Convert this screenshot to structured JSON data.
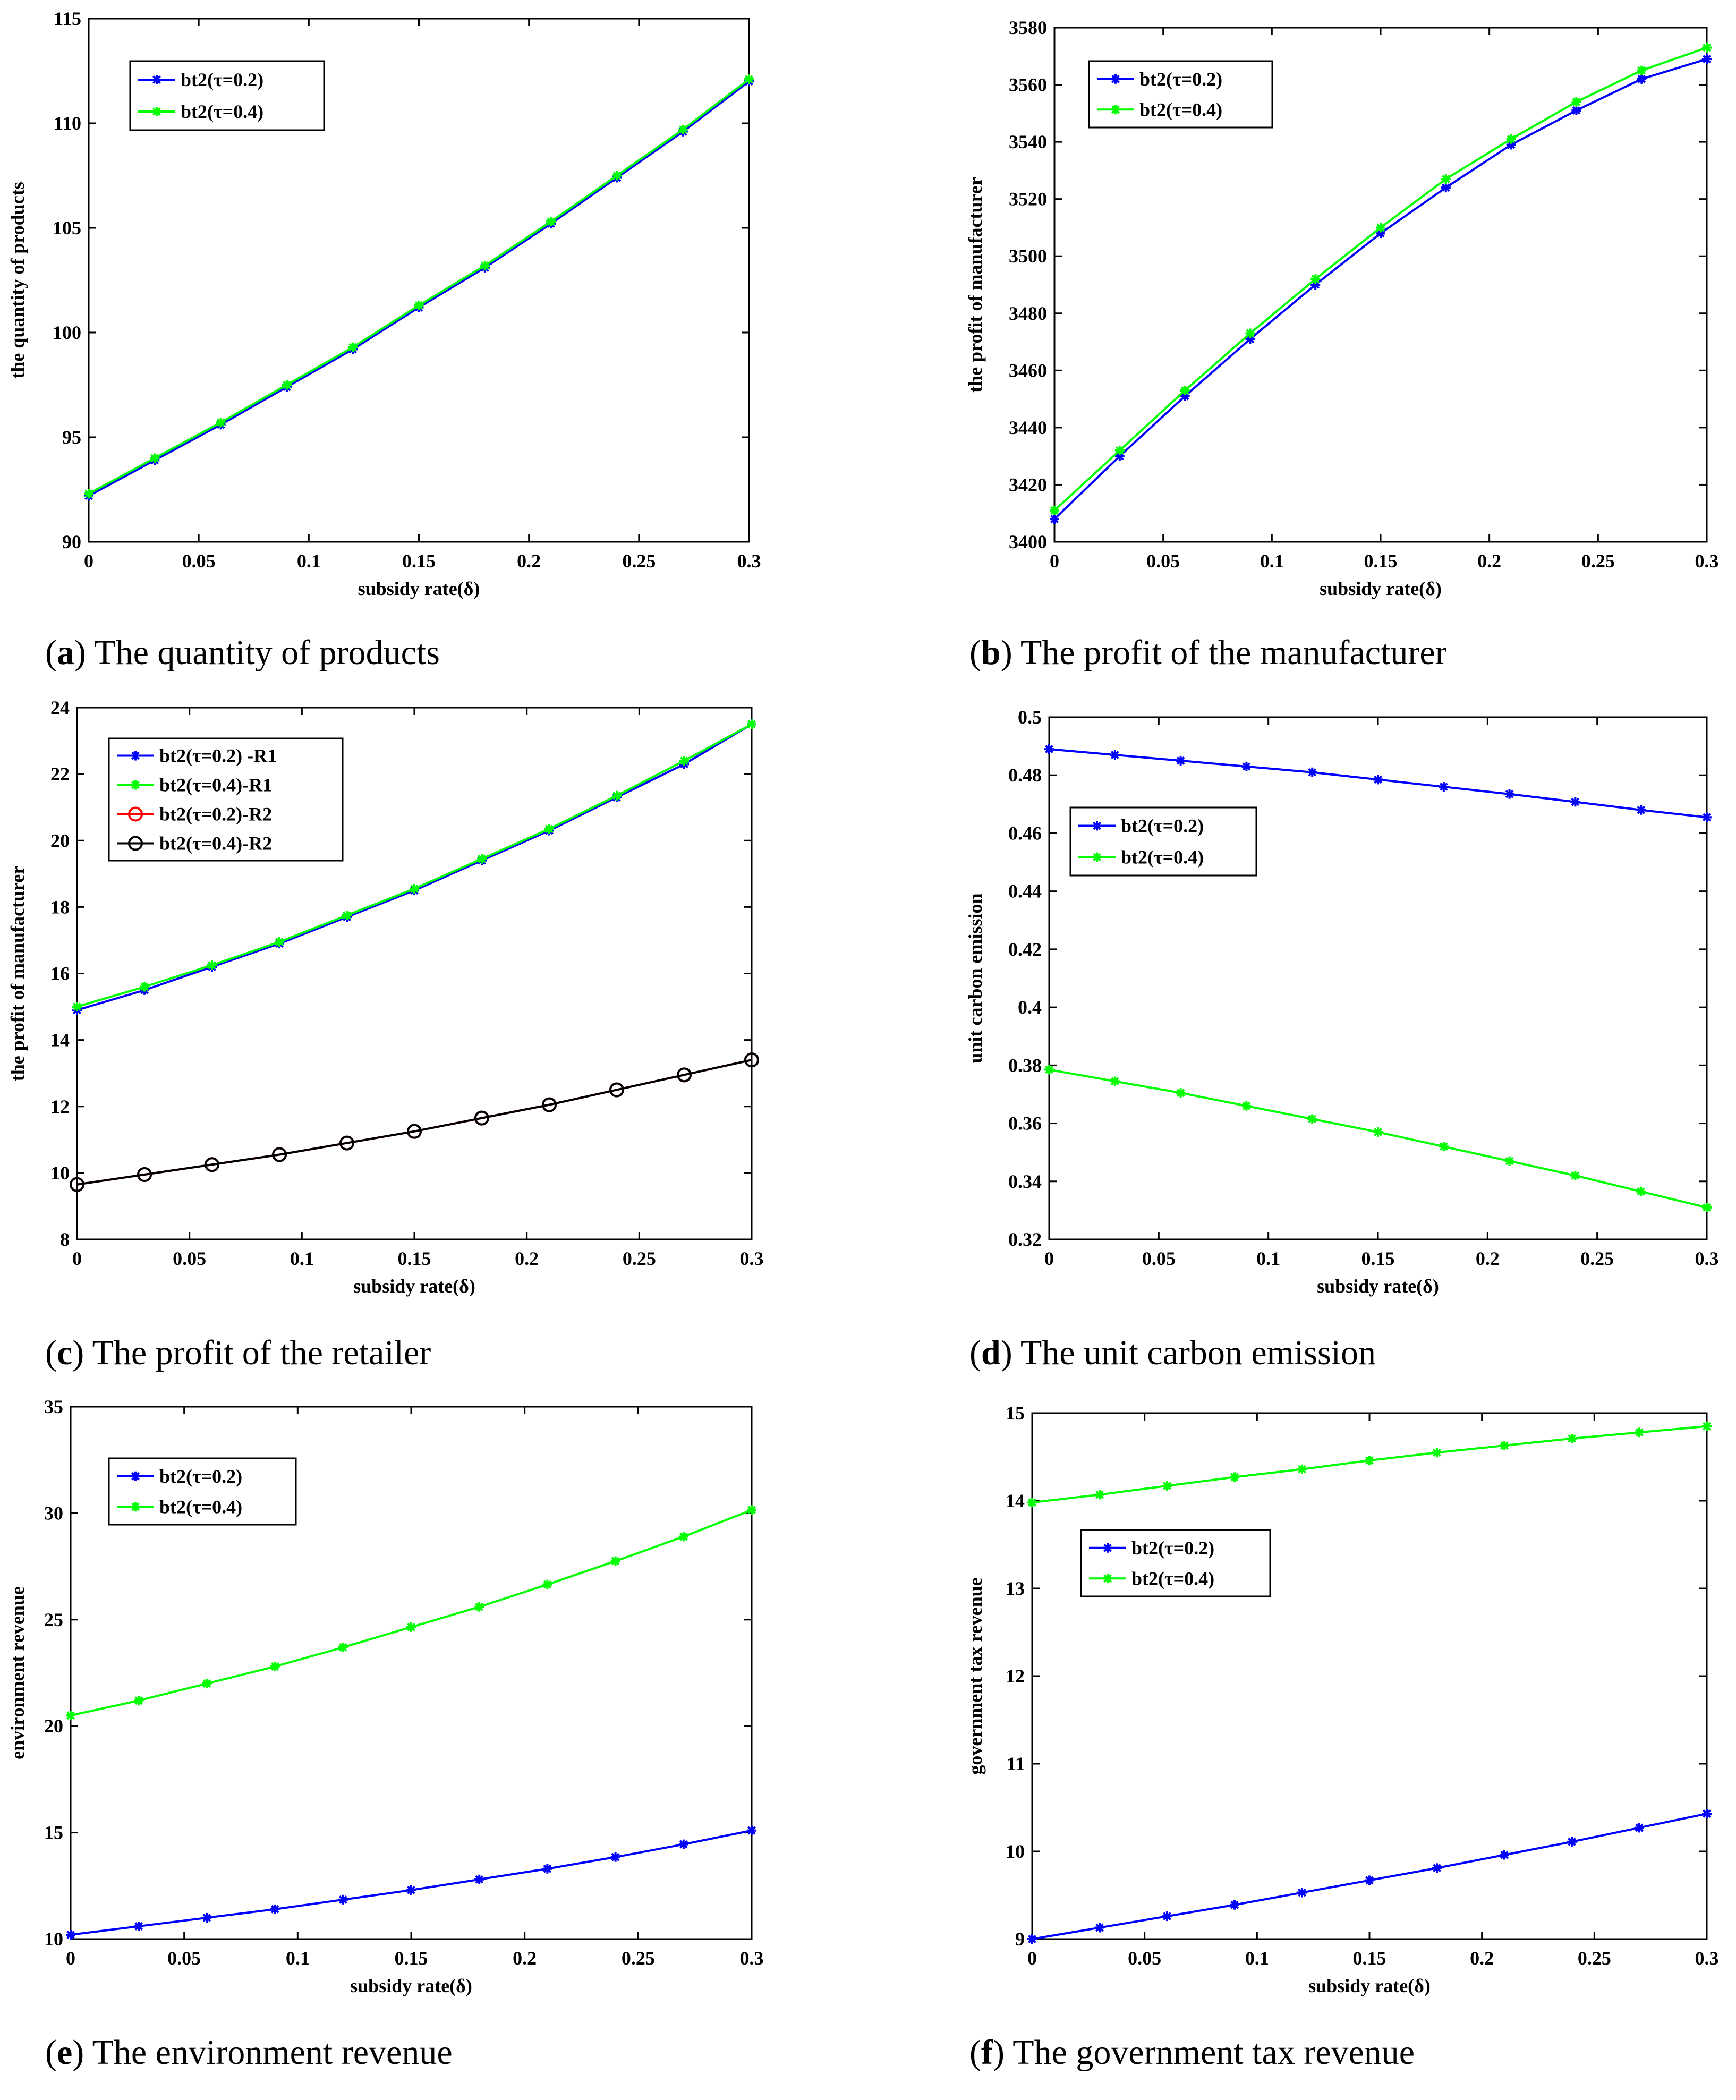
{
  "chart_data": [
    {
      "id": "a",
      "type": "line",
      "caption_letter": "a",
      "caption_title": "The quantity of products",
      "xlabel": "subsidy rate(δ)",
      "ylabel": "the quantity of products",
      "xlim": [
        0,
        0.3
      ],
      "ylim": [
        90,
        115
      ],
      "xticks": [
        0,
        0.05,
        0.1,
        0.15,
        0.2,
        0.25,
        0.3
      ],
      "yticks": [
        90,
        95,
        100,
        105,
        110,
        115
      ],
      "legend_position": "top-left",
      "series": [
        {
          "name": "bt2(τ=0.2)",
          "color": "#0000ff",
          "marker": "star",
          "x": [
            0,
            0.03,
            0.06,
            0.09,
            0.12,
            0.15,
            0.18,
            0.21,
            0.24,
            0.27,
            0.3
          ],
          "y": [
            92.2,
            93.9,
            95.6,
            97.4,
            99.2,
            101.2,
            103.1,
            105.2,
            107.4,
            109.6,
            112.0
          ]
        },
        {
          "name": "bt2(τ=0.4)",
          "color": "#00ff00",
          "marker": "star",
          "x": [
            0,
            0.03,
            0.06,
            0.09,
            0.12,
            0.15,
            0.18,
            0.21,
            0.24,
            0.27,
            0.3
          ],
          "y": [
            92.3,
            94.0,
            95.7,
            97.5,
            99.3,
            101.3,
            103.2,
            105.3,
            107.5,
            109.7,
            112.1
          ]
        }
      ]
    },
    {
      "id": "b",
      "type": "line",
      "caption_letter": "b",
      "caption_title": "The profit of the manufacturer",
      "xlabel": "subsidy rate(δ)",
      "ylabel": "the profit of manufacturer",
      "xlim": [
        0,
        0.3
      ],
      "ylim": [
        3400,
        3580
      ],
      "xticks": [
        0,
        0.05,
        0.1,
        0.15,
        0.2,
        0.25,
        0.3
      ],
      "yticks": [
        3400,
        3420,
        3440,
        3460,
        3480,
        3500,
        3520,
        3540,
        3560,
        3580
      ],
      "legend_position": "top-left",
      "series": [
        {
          "name": "bt2(τ=0.2)",
          "color": "#0000ff",
          "marker": "star",
          "x": [
            0,
            0.03,
            0.06,
            0.09,
            0.12,
            0.15,
            0.18,
            0.21,
            0.24,
            0.27,
            0.3
          ],
          "y": [
            3408,
            3430,
            3451,
            3471,
            3490,
            3508,
            3524,
            3539,
            3551,
            3562,
            3569
          ]
        },
        {
          "name": "bt2(τ=0.4)",
          "color": "#00ff00",
          "marker": "star",
          "x": [
            0,
            0.03,
            0.06,
            0.09,
            0.12,
            0.15,
            0.18,
            0.21,
            0.24,
            0.27,
            0.3
          ],
          "y": [
            3411,
            3432,
            3453,
            3473,
            3492,
            3510,
            3527,
            3541,
            3554,
            3565,
            3573
          ]
        }
      ]
    },
    {
      "id": "c",
      "type": "line",
      "caption_letter": "c",
      "caption_title": "The profit of the retailer",
      "xlabel": "subsidy rate(δ)",
      "ylabel": "the profit of manufacturer",
      "xlim": [
        0,
        0.3
      ],
      "ylim": [
        8,
        24
      ],
      "xticks": [
        0,
        0.05,
        0.1,
        0.15,
        0.2,
        0.25,
        0.3
      ],
      "yticks": [
        8,
        10,
        12,
        14,
        16,
        18,
        20,
        22,
        24
      ],
      "legend_position": "top-left",
      "series": [
        {
          "name": "bt2(τ=0.2) -R1",
          "color": "#0000ff",
          "marker": "star",
          "line_color": "#0000ff",
          "x": [
            0,
            0.03,
            0.06,
            0.09,
            0.12,
            0.15,
            0.18,
            0.21,
            0.24,
            0.27,
            0.3
          ],
          "y": [
            14.9,
            15.5,
            16.2,
            16.9,
            17.7,
            18.5,
            19.4,
            20.3,
            21.3,
            22.3,
            23.5
          ]
        },
        {
          "name": "bt2(τ=0.4)-R1",
          "color": "#00ff00",
          "marker": "star",
          "line_color": "#00ff00",
          "x": [
            0,
            0.03,
            0.06,
            0.09,
            0.12,
            0.15,
            0.18,
            0.21,
            0.24,
            0.27,
            0.3
          ],
          "y": [
            15.0,
            15.6,
            16.25,
            16.95,
            17.75,
            18.55,
            19.45,
            20.35,
            21.35,
            22.4,
            23.5
          ]
        },
        {
          "name": "bt2(τ=0.2)-R2",
          "color": "#ff0000",
          "marker": "circle",
          "line_color": "#ff0000",
          "x": [
            0,
            0.03,
            0.06,
            0.09,
            0.12,
            0.15,
            0.18,
            0.21,
            0.24,
            0.27,
            0.3
          ],
          "y": [
            9.65,
            9.95,
            10.25,
            10.55,
            10.9,
            11.25,
            11.65,
            12.05,
            12.5,
            12.95,
            13.4
          ]
        },
        {
          "name": "bt2(τ=0.4)-R2",
          "color": "#000000",
          "marker": "circle",
          "line_color": "#000000",
          "x": [
            0,
            0.03,
            0.06,
            0.09,
            0.12,
            0.15,
            0.18,
            0.21,
            0.24,
            0.27,
            0.3
          ],
          "y": [
            9.65,
            9.95,
            10.25,
            10.55,
            10.9,
            11.25,
            11.65,
            12.05,
            12.5,
            12.95,
            13.4
          ]
        }
      ]
    },
    {
      "id": "d",
      "type": "line",
      "caption_letter": "d",
      "caption_title": "The unit carbon emission",
      "xlabel": "subsidy rate(δ)",
      "ylabel": "unit carbon emission",
      "xlim": [
        0,
        0.3
      ],
      "ylim": [
        0.32,
        0.5
      ],
      "xticks": [
        0,
        0.05,
        0.1,
        0.15,
        0.2,
        0.25,
        0.3
      ],
      "yticks": [
        0.32,
        0.34,
        0.36,
        0.38,
        0.4,
        0.42,
        0.44,
        0.46,
        0.48,
        0.5
      ],
      "ytick_labels": [
        "0.32",
        "0.34",
        "0.36",
        "0.38",
        "0.4",
        "0.42",
        "0.44",
        "0.46",
        "0.48",
        "0.5"
      ],
      "legend_position": "upper-left",
      "series": [
        {
          "name": "bt2(τ=0.2)",
          "color": "#0000ff",
          "marker": "star",
          "x": [
            0,
            0.03,
            0.06,
            0.09,
            0.12,
            0.15,
            0.18,
            0.21,
            0.24,
            0.27,
            0.3
          ],
          "y": [
            0.489,
            0.487,
            0.485,
            0.483,
            0.481,
            0.4785,
            0.476,
            0.4735,
            0.4708,
            0.468,
            0.4655
          ]
        },
        {
          "name": "bt2(τ=0.4)",
          "color": "#00ff00",
          "marker": "star",
          "x": [
            0,
            0.03,
            0.06,
            0.09,
            0.12,
            0.15,
            0.18,
            0.21,
            0.24,
            0.27,
            0.3
          ],
          "y": [
            0.3785,
            0.3745,
            0.3705,
            0.366,
            0.3615,
            0.357,
            0.352,
            0.347,
            0.342,
            0.3365,
            0.331
          ]
        }
      ]
    },
    {
      "id": "e",
      "type": "line",
      "caption_letter": "e",
      "caption_title": "The environment revenue",
      "xlabel": "subsidy rate(δ)",
      "ylabel": "environment revenue",
      "xlim": [
        0,
        0.3
      ],
      "ylim": [
        10,
        35
      ],
      "xticks": [
        0,
        0.05,
        0.1,
        0.15,
        0.2,
        0.25,
        0.3
      ],
      "yticks": [
        10,
        15,
        20,
        25,
        30,
        35
      ],
      "legend_position": "top-left",
      "series": [
        {
          "name": "bt2(τ=0.2)",
          "color": "#0000ff",
          "marker": "star",
          "x": [
            0,
            0.03,
            0.06,
            0.09,
            0.12,
            0.15,
            0.18,
            0.21,
            0.24,
            0.27,
            0.3
          ],
          "y": [
            10.2,
            10.6,
            11.0,
            11.4,
            11.85,
            12.3,
            12.8,
            13.3,
            13.85,
            14.45,
            15.1
          ]
        },
        {
          "name": "bt2(τ=0.4)",
          "color": "#00ff00",
          "marker": "star",
          "x": [
            0,
            0.03,
            0.06,
            0.09,
            0.12,
            0.15,
            0.18,
            0.21,
            0.24,
            0.27,
            0.3
          ],
          "y": [
            20.5,
            21.2,
            22.0,
            22.8,
            23.7,
            24.65,
            25.6,
            26.65,
            27.75,
            28.9,
            30.15
          ]
        }
      ]
    },
    {
      "id": "f",
      "type": "line",
      "caption_letter": "f",
      "caption_title": "The government tax revenue",
      "xlabel": "subsidy rate(δ)",
      "ylabel": "government tax revenue",
      "xlim": [
        0,
        0.3
      ],
      "ylim": [
        9,
        15
      ],
      "xticks": [
        0,
        0.05,
        0.1,
        0.15,
        0.2,
        0.25,
        0.3
      ],
      "yticks": [
        9,
        10,
        11,
        12,
        13,
        14,
        15
      ],
      "legend_position": "middle-left",
      "series": [
        {
          "name": "bt2(τ=0.2)",
          "color": "#0000ff",
          "marker": "star",
          "x": [
            0,
            0.03,
            0.06,
            0.09,
            0.12,
            0.15,
            0.18,
            0.21,
            0.24,
            0.27,
            0.3
          ],
          "y": [
            9.0,
            9.13,
            9.26,
            9.39,
            9.53,
            9.67,
            9.81,
            9.96,
            10.11,
            10.27,
            10.43
          ]
        },
        {
          "name": "bt2(τ=0.4)",
          "color": "#00ff00",
          "marker": "star",
          "x": [
            0,
            0.03,
            0.06,
            0.09,
            0.12,
            0.15,
            0.18,
            0.21,
            0.24,
            0.27,
            0.3
          ],
          "y": [
            13.98,
            14.07,
            14.17,
            14.27,
            14.36,
            14.46,
            14.55,
            14.63,
            14.71,
            14.78,
            14.85
          ]
        }
      ]
    }
  ]
}
